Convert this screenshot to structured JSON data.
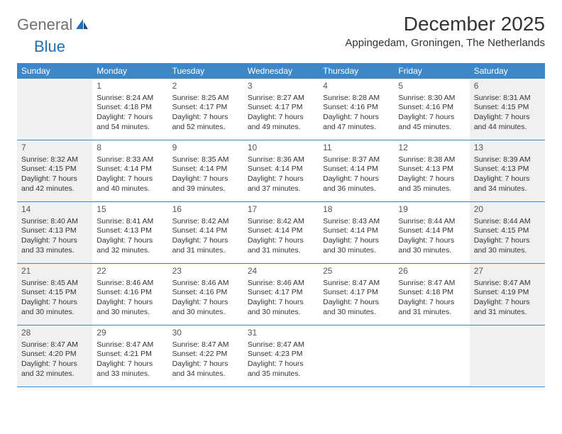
{
  "brand": {
    "part1": "General",
    "part2": "Blue"
  },
  "title": "December 2025",
  "location": "Appingedam, Groningen, The Netherlands",
  "colors": {
    "header_bg": "#3d87c7",
    "header_text": "#ffffff",
    "shade_bg": "#f0f0f0",
    "rule": "#3d87c7",
    "brand_gray": "#6f6f6f",
    "brand_blue": "#1f6fb2"
  },
  "weekdays": [
    "Sunday",
    "Monday",
    "Tuesday",
    "Wednesday",
    "Thursday",
    "Friday",
    "Saturday"
  ],
  "weeks": [
    [
      {
        "num": "",
        "shade": true,
        "lines": []
      },
      {
        "num": "1",
        "shade": false,
        "lines": [
          "Sunrise: 8:24 AM",
          "Sunset: 4:18 PM",
          "Daylight: 7 hours and 54 minutes."
        ]
      },
      {
        "num": "2",
        "shade": false,
        "lines": [
          "Sunrise: 8:25 AM",
          "Sunset: 4:17 PM",
          "Daylight: 7 hours and 52 minutes."
        ]
      },
      {
        "num": "3",
        "shade": false,
        "lines": [
          "Sunrise: 8:27 AM",
          "Sunset: 4:17 PM",
          "Daylight: 7 hours and 49 minutes."
        ]
      },
      {
        "num": "4",
        "shade": false,
        "lines": [
          "Sunrise: 8:28 AM",
          "Sunset: 4:16 PM",
          "Daylight: 7 hours and 47 minutes."
        ]
      },
      {
        "num": "5",
        "shade": false,
        "lines": [
          "Sunrise: 8:30 AM",
          "Sunset: 4:16 PM",
          "Daylight: 7 hours and 45 minutes."
        ]
      },
      {
        "num": "6",
        "shade": true,
        "lines": [
          "Sunrise: 8:31 AM",
          "Sunset: 4:15 PM",
          "Daylight: 7 hours and 44 minutes."
        ]
      }
    ],
    [
      {
        "num": "7",
        "shade": true,
        "lines": [
          "Sunrise: 8:32 AM",
          "Sunset: 4:15 PM",
          "Daylight: 7 hours and 42 minutes."
        ]
      },
      {
        "num": "8",
        "shade": false,
        "lines": [
          "Sunrise: 8:33 AM",
          "Sunset: 4:14 PM",
          "Daylight: 7 hours and 40 minutes."
        ]
      },
      {
        "num": "9",
        "shade": false,
        "lines": [
          "Sunrise: 8:35 AM",
          "Sunset: 4:14 PM",
          "Daylight: 7 hours and 39 minutes."
        ]
      },
      {
        "num": "10",
        "shade": false,
        "lines": [
          "Sunrise: 8:36 AM",
          "Sunset: 4:14 PM",
          "Daylight: 7 hours and 37 minutes."
        ]
      },
      {
        "num": "11",
        "shade": false,
        "lines": [
          "Sunrise: 8:37 AM",
          "Sunset: 4:14 PM",
          "Daylight: 7 hours and 36 minutes."
        ]
      },
      {
        "num": "12",
        "shade": false,
        "lines": [
          "Sunrise: 8:38 AM",
          "Sunset: 4:13 PM",
          "Daylight: 7 hours and 35 minutes."
        ]
      },
      {
        "num": "13",
        "shade": true,
        "lines": [
          "Sunrise: 8:39 AM",
          "Sunset: 4:13 PM",
          "Daylight: 7 hours and 34 minutes."
        ]
      }
    ],
    [
      {
        "num": "14",
        "shade": true,
        "lines": [
          "Sunrise: 8:40 AM",
          "Sunset: 4:13 PM",
          "Daylight: 7 hours and 33 minutes."
        ]
      },
      {
        "num": "15",
        "shade": false,
        "lines": [
          "Sunrise: 8:41 AM",
          "Sunset: 4:13 PM",
          "Daylight: 7 hours and 32 minutes."
        ]
      },
      {
        "num": "16",
        "shade": false,
        "lines": [
          "Sunrise: 8:42 AM",
          "Sunset: 4:14 PM",
          "Daylight: 7 hours and 31 minutes."
        ]
      },
      {
        "num": "17",
        "shade": false,
        "lines": [
          "Sunrise: 8:42 AM",
          "Sunset: 4:14 PM",
          "Daylight: 7 hours and 31 minutes."
        ]
      },
      {
        "num": "18",
        "shade": false,
        "lines": [
          "Sunrise: 8:43 AM",
          "Sunset: 4:14 PM",
          "Daylight: 7 hours and 30 minutes."
        ]
      },
      {
        "num": "19",
        "shade": false,
        "lines": [
          "Sunrise: 8:44 AM",
          "Sunset: 4:14 PM",
          "Daylight: 7 hours and 30 minutes."
        ]
      },
      {
        "num": "20",
        "shade": true,
        "lines": [
          "Sunrise: 8:44 AM",
          "Sunset: 4:15 PM",
          "Daylight: 7 hours and 30 minutes."
        ]
      }
    ],
    [
      {
        "num": "21",
        "shade": true,
        "lines": [
          "Sunrise: 8:45 AM",
          "Sunset: 4:15 PM",
          "Daylight: 7 hours and 30 minutes."
        ]
      },
      {
        "num": "22",
        "shade": false,
        "lines": [
          "Sunrise: 8:46 AM",
          "Sunset: 4:16 PM",
          "Daylight: 7 hours and 30 minutes."
        ]
      },
      {
        "num": "23",
        "shade": false,
        "lines": [
          "Sunrise: 8:46 AM",
          "Sunset: 4:16 PM",
          "Daylight: 7 hours and 30 minutes."
        ]
      },
      {
        "num": "24",
        "shade": false,
        "lines": [
          "Sunrise: 8:46 AM",
          "Sunset: 4:17 PM",
          "Daylight: 7 hours and 30 minutes."
        ]
      },
      {
        "num": "25",
        "shade": false,
        "lines": [
          "Sunrise: 8:47 AM",
          "Sunset: 4:17 PM",
          "Daylight: 7 hours and 30 minutes."
        ]
      },
      {
        "num": "26",
        "shade": false,
        "lines": [
          "Sunrise: 8:47 AM",
          "Sunset: 4:18 PM",
          "Daylight: 7 hours and 31 minutes."
        ]
      },
      {
        "num": "27",
        "shade": true,
        "lines": [
          "Sunrise: 8:47 AM",
          "Sunset: 4:19 PM",
          "Daylight: 7 hours and 31 minutes."
        ]
      }
    ],
    [
      {
        "num": "28",
        "shade": true,
        "lines": [
          "Sunrise: 8:47 AM",
          "Sunset: 4:20 PM",
          "Daylight: 7 hours and 32 minutes."
        ]
      },
      {
        "num": "29",
        "shade": false,
        "lines": [
          "Sunrise: 8:47 AM",
          "Sunset: 4:21 PM",
          "Daylight: 7 hours and 33 minutes."
        ]
      },
      {
        "num": "30",
        "shade": false,
        "lines": [
          "Sunrise: 8:47 AM",
          "Sunset: 4:22 PM",
          "Daylight: 7 hours and 34 minutes."
        ]
      },
      {
        "num": "31",
        "shade": false,
        "lines": [
          "Sunrise: 8:47 AM",
          "Sunset: 4:23 PM",
          "Daylight: 7 hours and 35 minutes."
        ]
      },
      {
        "num": "",
        "shade": false,
        "lines": []
      },
      {
        "num": "",
        "shade": false,
        "lines": []
      },
      {
        "num": "",
        "shade": true,
        "lines": []
      }
    ]
  ]
}
